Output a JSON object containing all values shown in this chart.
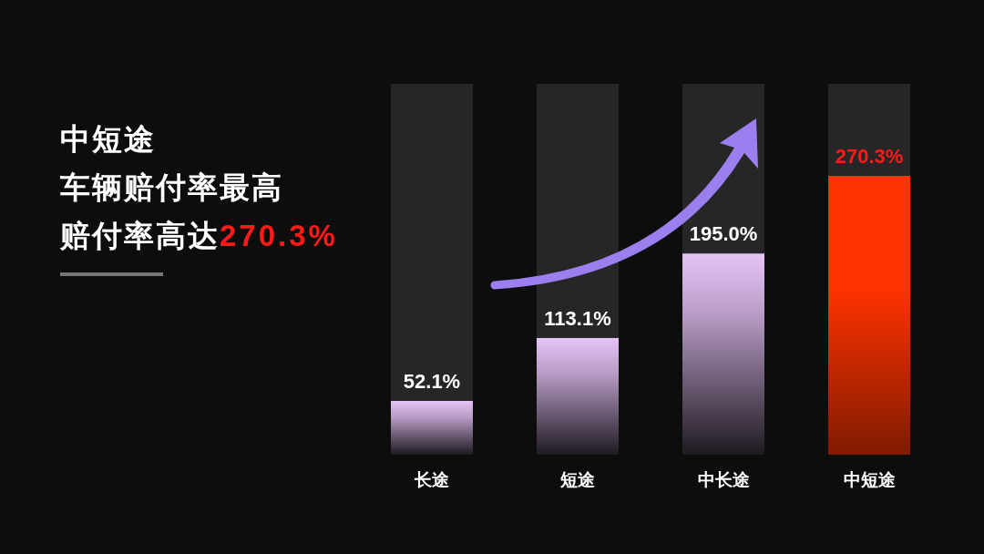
{
  "chart_data": {
    "type": "bar",
    "title": "中短途",
    "subtitle": "车辆赔付率最高",
    "annotations": [
      "赔付率高达**270.3%**"
    ],
    "categories": [
      "长途",
      "短途",
      "中长途",
      "中短途"
    ],
    "values": [
      52.1,
      113.1,
      195.0,
      270.3
    ],
    "colors": [
      "#e6c3f7",
      "#e6c3f7",
      "#e6c3f7",
      "#ff3300"
    ],
    "value_labels": [
      "52.1%",
      "113.1%",
      "195.0%",
      "270.3%"
    ]
  }
}
